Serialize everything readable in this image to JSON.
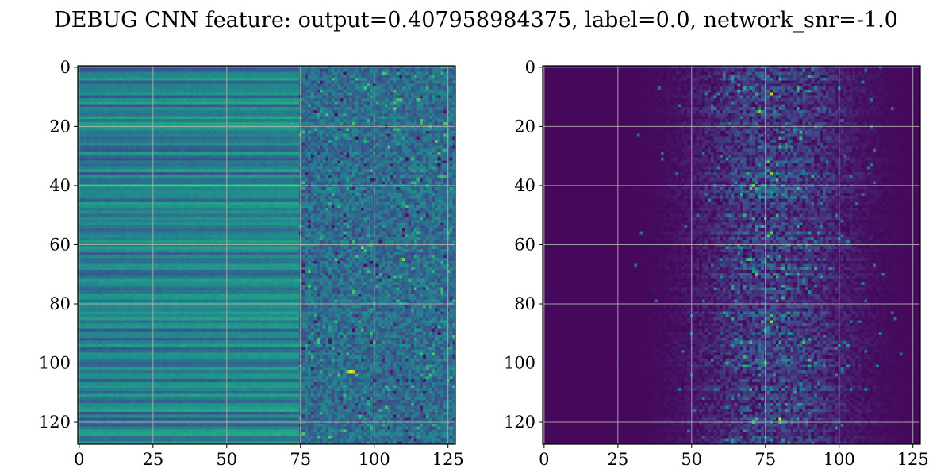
{
  "figure_title": "DEBUG CNN feature: output=0.407958984375, label=0.0, network_snr=-1.0",
  "chart_data": [
    {
      "type": "heatmap",
      "panel": "left",
      "colormap": "viridis",
      "grid": true,
      "xlim": [
        0,
        127
      ],
      "ylim": [
        0,
        127
      ],
      "y_inverted": true,
      "x_ticks": [
        0,
        25,
        50,
        75,
        100,
        125
      ],
      "y_ticks": [
        0,
        20,
        40,
        60,
        80,
        100,
        120
      ],
      "x_tick_labels": [
        "0",
        "25",
        "50",
        "75",
        "100",
        "125"
      ],
      "y_tick_labels": [
        "0",
        "20",
        "40",
        "60",
        "80",
        "100",
        "120"
      ],
      "shape": [
        128,
        128
      ],
      "value_range": [
        0,
        1
      ],
      "notes": "horizontal banded structure for columns 0-75, noisy speckle for columns 75-127; bright spot near (col 92, row 103)"
    },
    {
      "type": "heatmap",
      "panel": "right",
      "colormap": "viridis",
      "grid": true,
      "xlim": [
        0,
        127
      ],
      "ylim": [
        0,
        127
      ],
      "y_inverted": true,
      "x_ticks": [
        0,
        25,
        50,
        75,
        100,
        125
      ],
      "y_ticks": [
        0,
        20,
        40,
        60,
        80,
        100,
        120
      ],
      "x_tick_labels": [
        "0",
        "25",
        "50",
        "75",
        "100",
        "125"
      ],
      "y_tick_labels": [
        "0",
        "20",
        "40",
        "60",
        "80",
        "100",
        "120"
      ],
      "shape": [
        128,
        128
      ],
      "value_range": [
        0,
        1
      ],
      "notes": "mostly dark background; speckled activity concentrated around columns 25-115 peaking near column 75-80"
    }
  ]
}
